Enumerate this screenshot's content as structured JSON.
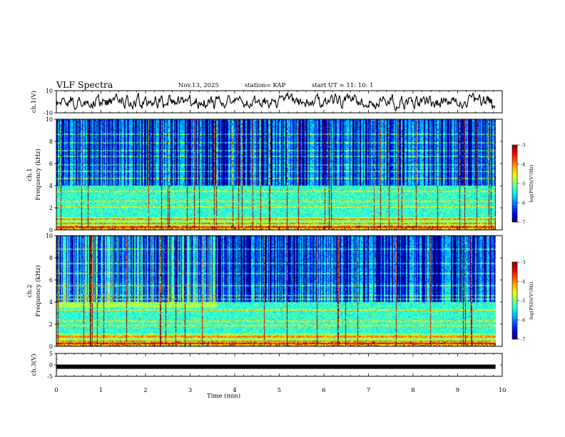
{
  "header": {
    "title": "VLF Spectra",
    "date": "Nov.13, 2025",
    "station": "station= KAP",
    "start_ut": "start  UT  =   11: 10: 1"
  },
  "chart_data": [
    {
      "type": "line",
      "name": "waveform-ch1",
      "ylabel": "ch.1(V)",
      "ylim": [
        -10,
        10
      ],
      "yticks": [
        "10",
        "-10"
      ],
      "description_values": "noisy voltage trace roughly between -10 and 10 V centered near 0"
    },
    {
      "type": "heatmap",
      "name": "spectrogram-ch1",
      "ylabel_top": "ch.1",
      "ylabel": "Frequency (kHz)",
      "ylim": [
        0,
        10
      ],
      "yticks": [
        "0",
        "2",
        "4",
        "6",
        "8",
        "10"
      ],
      "colorbar": {
        "label": "log(PSD)(V²/Hz)",
        "range": [
          -7,
          -3
        ],
        "ticks": [
          "-3",
          "-4",
          "-5",
          "-6",
          "-7"
        ]
      }
    },
    {
      "type": "heatmap",
      "name": "spectrogram-ch2",
      "ylabel_top": "ch.2",
      "ylabel": "Frequency (kHz)",
      "ylim": [
        0,
        10
      ],
      "yticks": [
        "0",
        "2",
        "4",
        "6",
        "8",
        "10"
      ],
      "colorbar": {
        "label": "log(PSD)(V²/Hz)",
        "range": [
          -7,
          -3
        ],
        "ticks": [
          "-3",
          "-4",
          "-5",
          "-6",
          "-7"
        ]
      }
    },
    {
      "type": "line",
      "name": "waveform-ch3",
      "ylabel": "ch.3(V)",
      "ylim": [
        -5,
        5
      ],
      "yticks": [
        "5",
        "0",
        "-5"
      ],
      "level_volts": -0.8
    }
  ],
  "x_axis": {
    "label": "Time (min)",
    "range": [
      0,
      10
    ],
    "ticks": [
      "0",
      "1",
      "2",
      "3",
      "4",
      "5",
      "6",
      "7",
      "8",
      "9",
      "10"
    ],
    "data_end_min": 9.85
  },
  "colors": {
    "jet_low": "#00007f",
    "jet_high": "#7f0000",
    "trace": "#000000",
    "axes": "#000000"
  }
}
